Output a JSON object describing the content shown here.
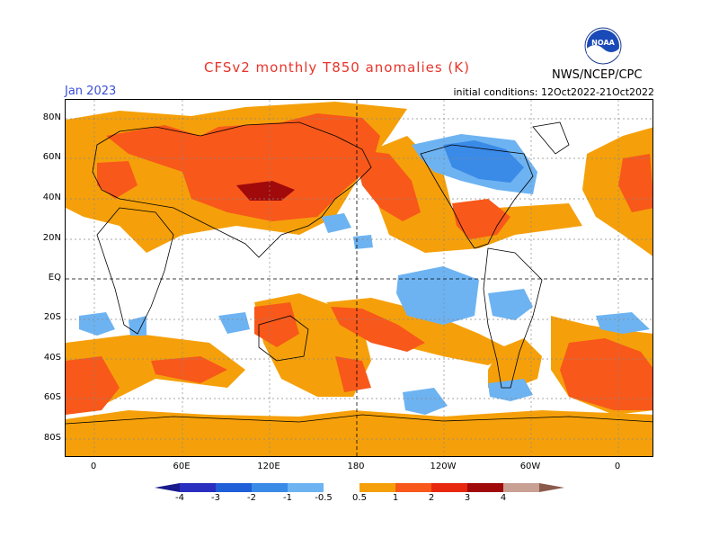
{
  "header": {
    "title": "CFSv2 monthly T850 anomalies (K)",
    "month": "Jan 2023",
    "initial_conditions": "initial conditions: 12Oct2022-21Oct2022",
    "org": "NWS/NCEP/CPC",
    "logo_text": "NOAA"
  },
  "axes": {
    "lat_labels": [
      "80N",
      "60N",
      "40N",
      "20N",
      "EQ",
      "20S",
      "40S",
      "60S",
      "80S"
    ],
    "lon_labels": [
      "0",
      "60E",
      "120E",
      "180",
      "120W",
      "60W",
      "0"
    ]
  },
  "colorbar": {
    "labels": [
      "-4",
      "-3",
      "-2",
      "-1",
      "-0.5",
      "0.5",
      "1",
      "2",
      "3",
      "4"
    ],
    "colors": [
      "#1a1a8c",
      "#2a2fc0",
      "#1f5fd8",
      "#3a8ae8",
      "#6db3f2",
      "#ffffff",
      "#f5a00a",
      "#f8581a",
      "#e8280e",
      "#a00a0a",
      "#c8a094",
      "#8a5a4a"
    ]
  },
  "palette": {
    "warm1": "#f5a00a",
    "warm2": "#f8581a",
    "warm3": "#a00a0a",
    "cool1": "#6db3f2",
    "cool2": "#3a8ae8",
    "title_color": "#e8342a",
    "month_color": "#3a4fd8"
  }
}
